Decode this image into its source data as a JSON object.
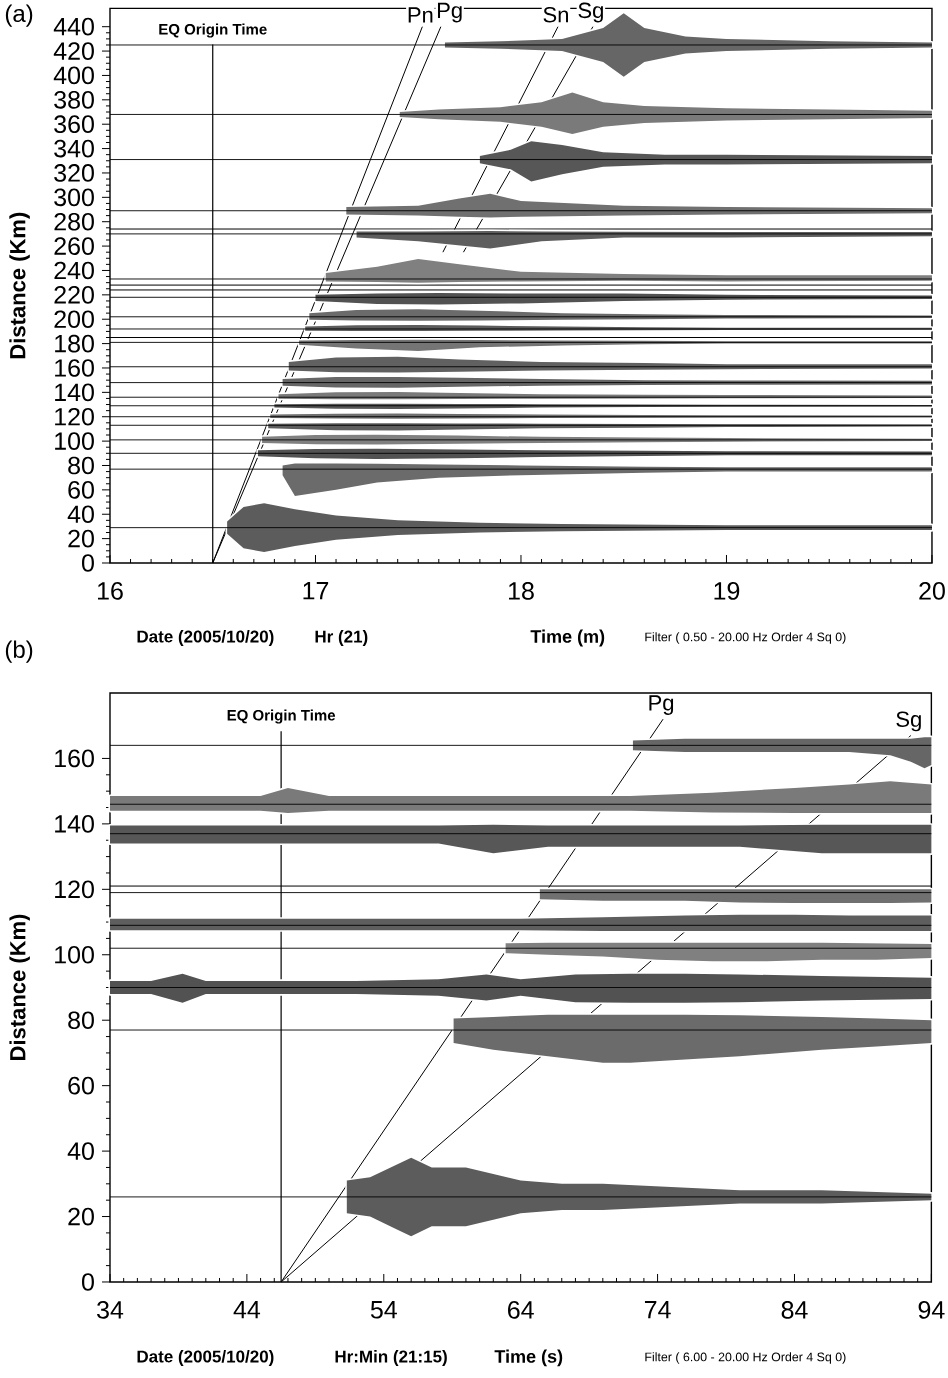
{
  "chart_data": [
    {
      "type": "line",
      "title": "(a)",
      "xlabel": "Time (m)",
      "ylabel": "Distance (Km)",
      "annotations": [
        "Date (2005/10/20)",
        "Hr (21)",
        "Filter ( 0.50 - 20.00 Hz Order 4 Sq 0)"
      ],
      "xlim": [
        16,
        20
      ],
      "ylim": [
        0,
        455
      ],
      "xticks": [
        16,
        17,
        18,
        19,
        20
      ],
      "yticks": [
        0,
        20,
        40,
        60,
        80,
        100,
        120,
        140,
        160,
        180,
        200,
        220,
        240,
        260,
        280,
        300,
        320,
        340,
        360,
        380,
        400,
        420,
        440
      ],
      "ref_lines": [
        {
          "axis": "x",
          "value": 16.5,
          "label": "EQ Origin Time"
        }
      ],
      "series": [
        {
          "color": "#000000",
          "x": [
            16,
            17.63,
            17.9,
            18.2,
            18.4,
            18.5,
            18.6,
            18.8,
            19.0,
            19.5,
            20
          ],
          "values": [
            425,
            425,
            425,
            425,
            425,
            425,
            425,
            425,
            425,
            425,
            425
          ],
          "lower": [
            null,
            423,
            422,
            420,
            411,
            399,
            411,
            418,
            420,
            422,
            423
          ],
          "upper": [
            null,
            427,
            428,
            430,
            439,
            451,
            439,
            432,
            430,
            428,
            427
          ]
        },
        {
          "color": "#000000",
          "x": [
            16,
            17.41,
            17.6,
            17.9,
            18.1,
            18.25,
            18.4,
            18.6,
            19.0,
            19.5,
            20
          ],
          "values": [
            368,
            368,
            368,
            368,
            368,
            368,
            368,
            368,
            368,
            368,
            368
          ],
          "lower": [
            null,
            366,
            364,
            362,
            358,
            352,
            358,
            361,
            363,
            364,
            365
          ],
          "upper": [
            null,
            370,
            372,
            374,
            378,
            386,
            378,
            375,
            373,
            372,
            371
          ]
        },
        {
          "color": "#000000",
          "x": [
            16,
            17.8,
            17.95,
            18.05,
            18.2,
            18.4,
            18.7,
            19.0,
            20
          ],
          "values": [
            331,
            331,
            331,
            331,
            331,
            331,
            331,
            331,
            331
          ],
          "lower": [
            null,
            328,
            323,
            313,
            319,
            325,
            327,
            327,
            328
          ],
          "upper": [
            null,
            334,
            339,
            346,
            343,
            337,
            335,
            335,
            334
          ]
        },
        {
          "color": "#000000",
          "x": [
            16,
            17.15,
            17.5,
            17.7,
            17.85,
            18.0,
            18.5,
            19.0,
            20
          ],
          "values": [
            289,
            289,
            289,
            289,
            289,
            289,
            289,
            289,
            289
          ],
          "lower": [
            null,
            286,
            285,
            284,
            283.5,
            284,
            285,
            286,
            287
          ],
          "upper": [
            null,
            292,
            293,
            299,
            303,
            297,
            293,
            292,
            291
          ]
        },
        {
          "color": "#000000",
          "x": [
            16,
            20
          ],
          "values": [
            274,
            274
          ]
        },
        {
          "color": "#000000",
          "x": [
            16,
            17.2,
            17.5,
            17.85,
            18.1,
            18.5,
            19,
            20
          ],
          "values": [
            270,
            270,
            270,
            270,
            270,
            270,
            270,
            270
          ],
          "lower": [
            null,
            267,
            264,
            258,
            264,
            267,
            267,
            268
          ],
          "upper": [
            null,
            272,
            272,
            272.3,
            272,
            271.8,
            271.5,
            271.5
          ]
        },
        {
          "color": "#000000",
          "x": [
            16,
            17.05,
            17.3,
            17.5,
            17.7,
            18.0,
            18.5,
            19,
            20
          ],
          "values": [
            233,
            233,
            233,
            233,
            233,
            233,
            233,
            233,
            233
          ],
          "lower": [
            null,
            231,
            230.5,
            230,
            230.5,
            231,
            231.5,
            231,
            231.5
          ],
          "upper": [
            null,
            238,
            243,
            249.5,
            245,
            239,
            237,
            236,
            236
          ]
        },
        {
          "color": "#000000",
          "x": [
            16,
            20
          ],
          "values": [
            228,
            228
          ]
        },
        {
          "color": "#000000",
          "x": [
            16,
            20
          ],
          "values": [
            224,
            224
          ]
        },
        {
          "color": "#000000",
          "x": [
            16,
            17.0,
            17.3,
            17.6,
            18.0,
            18.5,
            19,
            20
          ],
          "values": [
            218,
            218,
            218,
            218,
            218,
            218,
            218,
            218
          ],
          "lower": [
            null,
            215,
            212.5,
            212,
            213,
            215,
            216,
            216.5
          ],
          "upper": [
            null,
            220,
            221,
            221.5,
            221,
            221,
            220,
            219.5
          ]
        },
        {
          "color": "#000000",
          "x": [
            16,
            16.97,
            17.2,
            17.5,
            17.8,
            18.2,
            18.6,
            19,
            20
          ],
          "values": [
            202,
            202,
            202,
            202,
            202,
            202,
            202,
            202,
            202
          ],
          "lower": [
            null,
            199.5,
            199,
            198.8,
            199,
            199.5,
            200,
            200.5,
            201
          ],
          "upper": [
            null,
            205,
            207.5,
            208.2,
            207,
            205,
            204,
            203.5,
            203
          ]
        },
        {
          "color": "#000000",
          "x": [
            16,
            16.95,
            17.2,
            17.5,
            17.8,
            18.2,
            18.6,
            19,
            20
          ],
          "values": [
            192,
            192,
            192,
            192,
            192,
            192,
            192,
            192,
            192
          ],
          "lower": [
            null,
            190.5,
            190.3,
            190.3,
            190.5,
            190.8,
            191,
            191.2,
            191.3
          ],
          "upper": [
            null,
            194,
            195,
            195.2,
            194.8,
            194,
            193.5,
            193,
            193
          ]
        },
        {
          "color": "#000000",
          "x": [
            16,
            20
          ],
          "values": [
            185,
            185
          ]
        },
        {
          "color": "#000000",
          "x": [
            16,
            16.92,
            17.2,
            17.5,
            17.8,
            18.2,
            18.6,
            19,
            20
          ],
          "values": [
            181,
            181,
            181,
            181,
            181,
            181,
            181,
            181,
            181
          ],
          "lower": [
            null,
            179,
            176,
            174,
            177,
            178.5,
            179.5,
            180,
            180
          ],
          "upper": [
            null,
            182.5,
            183,
            183.2,
            183,
            182.5,
            182.3,
            182,
            182
          ]
        },
        {
          "color": "#000000",
          "x": [
            16,
            16.87,
            17.1,
            17.4,
            17.7,
            18.1,
            18.6,
            19,
            20
          ],
          "values": [
            161,
            161,
            161,
            161,
            161,
            161,
            161,
            161,
            161
          ],
          "lower": [
            null,
            158,
            156.5,
            156.3,
            157,
            158,
            158.5,
            159,
            159.5
          ],
          "upper": [
            null,
            165,
            168.5,
            169.2,
            167,
            165,
            164,
            163,
            163
          ]
        },
        {
          "color": "#000000",
          "x": [
            16,
            16.84,
            17.1,
            17.4,
            17.7,
            18.1,
            18.6,
            19,
            20
          ],
          "values": [
            148,
            148,
            148,
            148,
            148,
            148,
            148,
            148,
            148
          ],
          "lower": [
            null,
            145.5,
            144,
            143.8,
            144.5,
            145.5,
            146,
            146.2,
            146.5
          ],
          "upper": [
            null,
            151,
            152.5,
            152.7,
            152,
            151,
            150,
            149.8,
            149.5
          ]
        },
        {
          "color": "#000000",
          "x": [
            16,
            16.82,
            17.1,
            17.4,
            17.7,
            18.1,
            18.6,
            19,
            20
          ],
          "values": [
            136,
            136,
            136,
            136,
            136,
            136,
            136,
            136,
            136
          ],
          "lower": [
            null,
            134.8,
            134.3,
            134.3,
            134.5,
            134.8,
            135,
            135.2,
            135.3
          ],
          "upper": [
            null,
            138.5,
            140,
            140.2,
            139.5,
            138.5,
            138,
            137.8,
            137.5
          ]
        },
        {
          "color": "#000000",
          "x": [
            16,
            16.8,
            17.1,
            17.4,
            17.7,
            18.1,
            18.6,
            19,
            20
          ],
          "values": [
            129,
            129,
            129,
            129,
            129,
            129,
            129,
            129,
            129
          ],
          "lower": [
            null,
            127.5,
            126.5,
            126.3,
            126.8,
            127.5,
            128,
            128.2,
            128.3
          ],
          "upper": [
            null,
            130.3,
            130.7,
            130.7,
            130.5,
            130.3,
            130,
            129.8,
            129.7
          ]
        },
        {
          "color": "#000000",
          "x": [
            16,
            16.78,
            17.1,
            17.4,
            17.7,
            18.1,
            18.6,
            19,
            20
          ],
          "values": [
            120,
            120,
            120,
            120,
            120,
            120,
            120,
            120,
            120
          ],
          "lower": [
            null,
            119,
            118.5,
            118.3,
            118.6,
            119,
            119.2,
            119.4,
            119.5
          ],
          "upper": [
            null,
            121.8,
            122.5,
            122.7,
            122.3,
            121.8,
            121.5,
            121.2,
            121
          ]
        },
        {
          "color": "#000000",
          "x": [
            16,
            16.77,
            17.1,
            17.4,
            17.7,
            18.1,
            18.6,
            19,
            20
          ],
          "values": [
            113,
            113,
            113,
            113,
            113,
            113,
            113,
            113,
            113
          ],
          "lower": [
            null,
            110.5,
            109,
            108.8,
            109.5,
            110.5,
            111,
            111.5,
            112
          ],
          "upper": [
            null,
            114.3,
            114.7,
            114.7,
            114.5,
            114.3,
            114,
            113.8,
            113.7
          ]
        },
        {
          "color": "#000000",
          "x": [
            16,
            16.74,
            17.0,
            17.3,
            17.7,
            18.1,
            18.6,
            19,
            20
          ],
          "values": [
            101,
            101,
            101,
            101,
            101,
            101,
            101,
            101,
            101
          ],
          "lower": [
            null,
            98.5,
            97.5,
            97.3,
            97.8,
            98.5,
            99,
            99.5,
            100
          ],
          "upper": [
            null,
            103.5,
            105,
            105.2,
            104.5,
            103.5,
            103,
            102.5,
            102
          ]
        },
        {
          "color": "#000000",
          "x": [
            16,
            16.72,
            17.0,
            17.3,
            17.7,
            18.1,
            18.6,
            19,
            20
          ],
          "values": [
            90,
            90,
            90,
            90,
            90,
            90,
            90,
            90,
            90
          ],
          "lower": [
            null,
            87.5,
            86,
            85.3,
            86,
            87,
            87.8,
            88.3,
            88.5
          ],
          "upper": [
            null,
            92.5,
            93.5,
            93.7,
            93.2,
            92.5,
            92,
            91.7,
            91.5
          ]
        },
        {
          "color": "#000000",
          "x": [
            16,
            16.84,
            16.9,
            17.1,
            17.3,
            17.6,
            18.0,
            18.6,
            19,
            20
          ],
          "values": [
            77,
            77,
            77,
            77,
            77,
            77,
            77,
            77,
            77,
            77
          ],
          "lower": [
            null,
            72,
            55,
            60,
            66,
            70,
            72,
            74,
            75,
            75
          ],
          "upper": [
            null,
            80,
            81.7,
            81.7,
            81.5,
            80.8,
            80,
            79,
            78.5,
            78.5
          ]
        },
        {
          "color": "#000000",
          "x": [
            16,
            16.57,
            16.65,
            16.75,
            16.9,
            17.1,
            17.4,
            17.8,
            18.2,
            19,
            20
          ],
          "values": [
            29,
            29,
            29,
            29,
            29,
            29,
            29,
            29,
            29,
            29,
            29
          ],
          "lower": [
            null,
            24,
            12,
            9,
            14,
            19,
            23,
            25,
            26,
            27,
            27
          ],
          "upper": [
            null,
            34,
            46,
            49,
            44,
            39,
            35,
            33,
            32,
            31,
            31
          ]
        },
        {
          "name": "Pn",
          "color": "#000000",
          "x": [
            16.5,
            17.52
          ],
          "values": [
            0,
            440
          ]
        },
        {
          "name": "Pg",
          "color": "#000000",
          "x": [
            16.5,
            17.61
          ],
          "values": [
            0,
            440
          ]
        },
        {
          "name": "Sn",
          "color": "#000000",
          "x": [
            17.62,
            18.18
          ],
          "values": [
            255,
            440
          ]
        },
        {
          "name": "Sg",
          "color": "#000000",
          "x": [
            17.72,
            18.35
          ],
          "values": [
            255,
            440
          ]
        }
      ]
    },
    {
      "type": "line",
      "title": "(b)",
      "xlabel": "Time (s)",
      "ylabel": "Distance (Km)",
      "annotations": [
        "Date (2005/10/20)",
        "Hr:Min (21:15)",
        "Filter ( 6.00 - 20.00 Hz Order 4 Sq 0)"
      ],
      "xlim": [
        34,
        94
      ],
      "ylim": [
        0,
        180
      ],
      "xticks": [
        34,
        44,
        54,
        64,
        74,
        84,
        94
      ],
      "yticks": [
        0,
        20,
        40,
        60,
        80,
        100,
        120,
        140,
        160
      ],
      "ref_lines": [
        {
          "axis": "x",
          "value": 46.5,
          "label": "EQ Origin Time"
        }
      ],
      "series": [
        {
          "color": "#000000",
          "x": [
            34,
            72.2,
            76,
            80,
            85,
            88,
            91,
            92.5,
            93.5,
            94
          ],
          "values": [
            164,
            164,
            164,
            164,
            164,
            164,
            164,
            164,
            164,
            164
          ],
          "lower": [
            null,
            162.5,
            162,
            162,
            162,
            162,
            161,
            159,
            157,
            158
          ],
          "upper": [
            null,
            165.5,
            166,
            166,
            166,
            166,
            166,
            166,
            166.5,
            166.5
          ]
        },
        {
          "color": "#000000",
          "x": [
            34,
            38,
            42,
            45,
            47,
            50,
            54,
            60,
            66,
            72,
            78,
            84,
            88,
            91,
            94
          ],
          "values": [
            146,
            146,
            146,
            146,
            146,
            146,
            146,
            146,
            146,
            146,
            146,
            146,
            146,
            146,
            146
          ],
          "lower": [
            144,
            144,
            144,
            144,
            143.3,
            144,
            144,
            144,
            144,
            144,
            143.5,
            143.3,
            143.3,
            143.3,
            143.3
          ],
          "upper": [
            148.5,
            148.5,
            148.5,
            148.5,
            151,
            148.5,
            148.5,
            148.5,
            148.5,
            148.5,
            149.5,
            151,
            152,
            153,
            152
          ]
        },
        {
          "color": "#000000",
          "x": [
            34,
            40,
            50,
            58,
            62,
            66,
            72,
            80,
            86,
            90,
            94
          ],
          "values": [
            137,
            137,
            137,
            137,
            137,
            137,
            137,
            137,
            137,
            137,
            137
          ],
          "lower": [
            134,
            134,
            134,
            134,
            131,
            133,
            133,
            133,
            131,
            131,
            131
          ],
          "upper": [
            139.5,
            139.5,
            139.5,
            139.5,
            139.7,
            139.5,
            139.5,
            139.5,
            139.7,
            139.7,
            139.7
          ]
        },
        {
          "color": "#000000",
          "x": [
            34,
            94
          ],
          "values": [
            121,
            121
          ]
        },
        {
          "color": "#000000",
          "x": [
            34,
            65.4,
            70,
            76,
            80,
            84,
            88,
            91,
            94
          ],
          "values": [
            119,
            119,
            119,
            119,
            119,
            119,
            119,
            119,
            119
          ],
          "lower": [
            null,
            117,
            116.5,
            116.5,
            116,
            115.8,
            115.8,
            115.8,
            116
          ],
          "upper": [
            null,
            120,
            120,
            120,
            120,
            120,
            120,
            120,
            120
          ]
        },
        {
          "color": "#000000",
          "x": [
            34,
            40,
            46,
            52,
            58,
            64,
            70,
            76,
            80,
            84,
            88,
            94
          ],
          "values": [
            109,
            109,
            109,
            109,
            109,
            109,
            109,
            109,
            109,
            109,
            109,
            109
          ],
          "lower": [
            107.5,
            107.5,
            107.5,
            107.5,
            107.5,
            107.5,
            107.3,
            107.3,
            107.3,
            107.3,
            107.3,
            107.3
          ],
          "upper": [
            111,
            111,
            111,
            111,
            111,
            111,
            111.5,
            112,
            112.2,
            112.2,
            112,
            112
          ]
        },
        {
          "color": "#000000",
          "x": [
            34,
            62.9,
            66,
            70,
            74,
            78,
            82,
            86,
            90,
            94
          ],
          "values": [
            102,
            102,
            102,
            102,
            102,
            102,
            102,
            102,
            102,
            102
          ],
          "lower": [
            null,
            100.5,
            100,
            99.5,
            98.5,
            98,
            98,
            98.5,
            98.5,
            99
          ],
          "upper": [
            null,
            103.5,
            103.7,
            103.7,
            103.7,
            103.7,
            103.7,
            103.7,
            103.5,
            103.3
          ]
        },
        {
          "color": "#000000",
          "x": [
            34,
            37,
            39.3,
            41,
            46,
            52,
            58,
            61.5,
            64,
            68,
            72,
            76,
            80,
            86,
            94
          ],
          "values": [
            90,
            90,
            90,
            90,
            90,
            90,
            90,
            90,
            90,
            90,
            90,
            90,
            90,
            90,
            90
          ],
          "lower": [
            88,
            88,
            85.3,
            88,
            88,
            88,
            87.5,
            86,
            87.5,
            85.5,
            85.3,
            85.3,
            85.5,
            86,
            86.5
          ],
          "upper": [
            92,
            92,
            94.2,
            92,
            92,
            92,
            92.5,
            94,
            92.5,
            94,
            94.2,
            94.2,
            94,
            93.5,
            93
          ]
        },
        {
          "color": "#000000",
          "x": [
            34,
            59.1,
            62,
            66,
            70,
            72,
            76,
            80,
            86,
            90,
            94
          ],
          "values": [
            77,
            77,
            77,
            77,
            77,
            77,
            77,
            77,
            77,
            77,
            77
          ],
          "lower": [
            null,
            73,
            71,
            69,
            67,
            67,
            68,
            69,
            71,
            72,
            73
          ],
          "upper": [
            null,
            80.5,
            81,
            81.7,
            81.7,
            81.7,
            81.7,
            81.5,
            81,
            80.5,
            80
          ]
        },
        {
          "color": "#000000",
          "x": [
            34,
            51.3,
            53,
            55,
            56,
            57.5,
            60,
            62,
            64,
            67,
            70,
            75,
            80,
            86,
            94
          ],
          "values": [
            26,
            26,
            26,
            26,
            26,
            26,
            26,
            26,
            26,
            26,
            26,
            26,
            26,
            26,
            26
          ],
          "lower": [
            null,
            21,
            20,
            16,
            14,
            17,
            17,
            19,
            21,
            22,
            22,
            23,
            24,
            24,
            25
          ],
          "upper": [
            null,
            31,
            32,
            36,
            38,
            35,
            35,
            33,
            31,
            30,
            30,
            29,
            28,
            28,
            27
          ]
        },
        {
          "name": "Pg",
          "color": "#000000",
          "x": [
            46.5,
            74.4
          ],
          "values": [
            0,
            172
          ]
        },
        {
          "name": "Sg",
          "color": "#000000",
          "x": [
            46.5,
            92.5
          ],
          "values": [
            0,
            167
          ]
        }
      ]
    }
  ]
}
